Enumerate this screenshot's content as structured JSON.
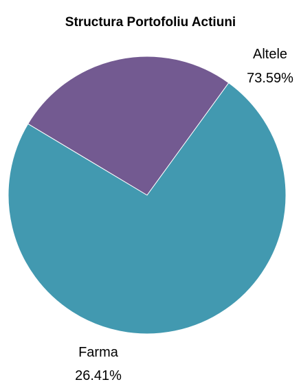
{
  "chart_data": {
    "type": "pie",
    "title": "Structura Portofoliu Actiuni",
    "slices": [
      {
        "name": "Altele",
        "value": 73.59,
        "value_label": "73.59%",
        "color": "#4299B0"
      },
      {
        "name": "Farma",
        "value": 26.41,
        "value_label": "26.41%",
        "color": "#735A91"
      }
    ],
    "legend": "none"
  }
}
